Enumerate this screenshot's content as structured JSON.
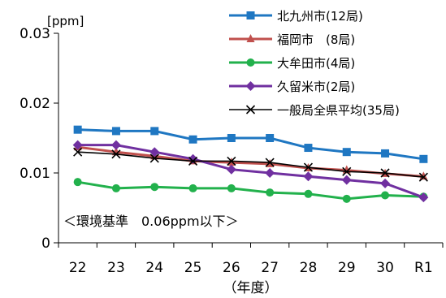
{
  "chart_data": {
    "type": "line",
    "title": "",
    "xlabel": "（年度）",
    "ylabel": "[ppm]",
    "categories": [
      "22",
      "23",
      "24",
      "25",
      "26",
      "27",
      "28",
      "29",
      "30",
      "R1"
    ],
    "ylim": [
      0,
      0.03
    ],
    "yticks": [
      "0",
      "0.01",
      "0.02",
      "0.03"
    ],
    "grid": false,
    "legend_position": "top-right",
    "annotation": "＜環境基準　0.06ppm以下＞",
    "series": [
      {
        "name": "北九州市(12局)",
        "color": "#1f77c2",
        "marker": "square",
        "values": [
          0.0162,
          0.016,
          0.016,
          0.0148,
          0.015,
          0.015,
          0.0136,
          0.013,
          0.0128,
          0.012
        ]
      },
      {
        "name": "福岡市　(8局)",
        "color": "#c0504d",
        "marker": "triangle",
        "values": [
          0.0137,
          0.013,
          0.0124,
          0.0117,
          0.0115,
          0.0113,
          0.0107,
          0.0104,
          0.0099,
          0.0095
        ]
      },
      {
        "name": "大牟田市(4局)",
        "color": "#22b14c",
        "marker": "circle",
        "values": [
          0.0087,
          0.0078,
          0.008,
          0.0078,
          0.0078,
          0.0072,
          0.007,
          0.0063,
          0.0068,
          0.0066
        ]
      },
      {
        "name": "久留米市(2局)",
        "color": "#7030a0",
        "marker": "diamond",
        "values": [
          0.014,
          0.014,
          0.013,
          0.012,
          0.0105,
          0.01,
          0.0095,
          0.009,
          0.0085,
          0.0065
        ]
      },
      {
        "name": "一般局全県平均(35局)",
        "color": "#000000",
        "marker": "x",
        "values": [
          0.013,
          0.0127,
          0.0121,
          0.0117,
          0.0117,
          0.0115,
          0.0108,
          0.0102,
          0.01,
          0.0094
        ]
      }
    ]
  }
}
